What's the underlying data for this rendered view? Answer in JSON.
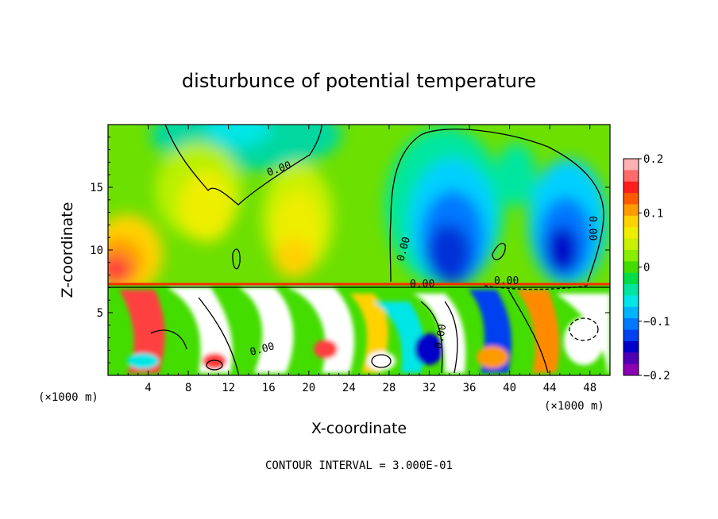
{
  "chart_data": {
    "type": "heatmap",
    "title": "disturbunce of potential temperature",
    "xlabel": "X-coordinate",
    "ylabel": "Z-coordinate",
    "x_unit": "(×1000 m)",
    "z_unit": "(×1000 m)",
    "xlim": [
      0,
      50
    ],
    "ylim": [
      0,
      20
    ],
    "x_ticks": [
      "4",
      "8",
      "12",
      "16",
      "20",
      "24",
      "28",
      "32",
      "36",
      "40",
      "44",
      "48"
    ],
    "y_ticks": [
      "5",
      "10",
      "15"
    ],
    "colorbar": {
      "range": [
        -0.2,
        0.2
      ],
      "tick_labels": [
        "0.2",
        "0.1",
        "0",
        "−0.1",
        "−0.2"
      ],
      "colors": [
        "#ffb0b0",
        "#ff6a6a",
        "#ff1e1e",
        "#ff5a00",
        "#ff9a00",
        "#ffd200",
        "#eeee00",
        "#c8f000",
        "#88ee00",
        "#44dd00",
        "#00dd44",
        "#00e6a0",
        "#00e6e6",
        "#00b4ff",
        "#0078ff",
        "#0040f0",
        "#0000c8",
        "#5000b4",
        "#8c00b4"
      ]
    },
    "contour_interval": "CONTOUR INTERVAL = 3.000E-01",
    "contour_labels": [
      "0.00",
      "0.00",
      "0.00",
      "0.00",
      "0.00",
      "0.00",
      "0.00"
    ],
    "grid": false
  }
}
